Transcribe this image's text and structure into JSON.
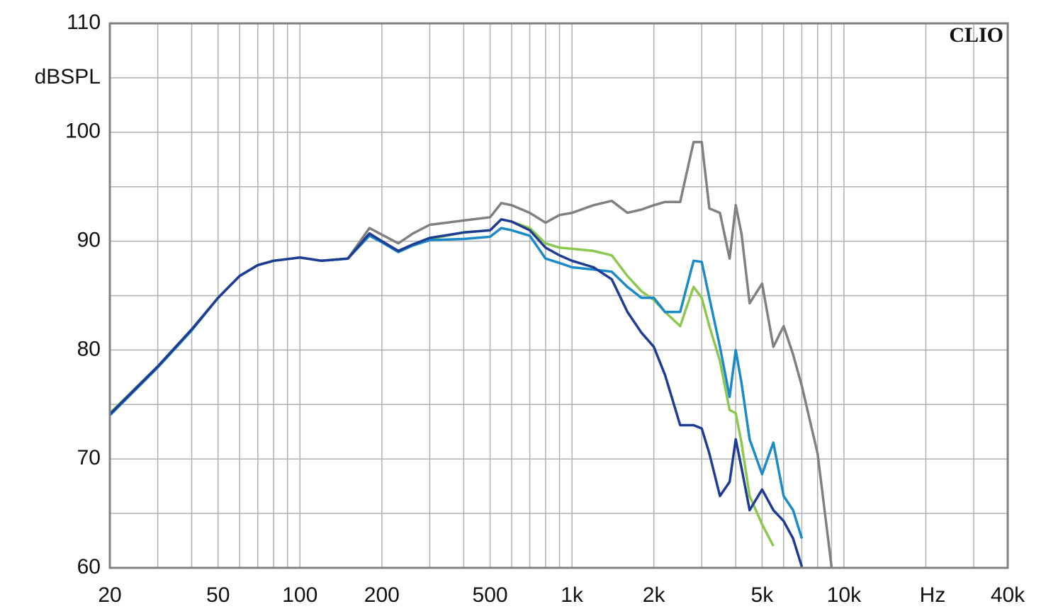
{
  "chart_data": {
    "type": "line",
    "y_label": "dBSPL",
    "x_label": "Hz",
    "annotation": "CLIO",
    "log_x": true,
    "grid": true,
    "xlim": [
      20,
      40000
    ],
    "ylim": [
      60,
      110
    ],
    "xticks": [
      20,
      50,
      100,
      200,
      500,
      {
        "value": 1000,
        "label": "1k"
      },
      {
        "value": 2000,
        "label": "2k"
      },
      {
        "value": 5000,
        "label": "5k"
      },
      {
        "value": 10000,
        "label": "10k"
      },
      {
        "value": 40000,
        "label": "40k"
      }
    ],
    "yticks": [
      60,
      70,
      80,
      90,
      100,
      110
    ],
    "xgrid": [
      30,
      40,
      60,
      70,
      80,
      90,
      300,
      400,
      600,
      700,
      800,
      900,
      3000,
      4000,
      6000,
      7000,
      8000,
      9000,
      20000,
      30000
    ],
    "ygrid": [
      65,
      75,
      85,
      95,
      105
    ],
    "x": [
      20,
      30,
      40,
      50,
      60,
      70,
      80,
      100,
      120,
      150,
      180,
      200,
      230,
      260,
      300,
      400,
      500,
      550,
      600,
      700,
      800,
      900,
      1000,
      1200,
      1400,
      1600,
      1800,
      2000,
      2200,
      2500,
      2800,
      3000,
      3200,
      3500,
      3800,
      4000,
      4200,
      4500,
      5000,
      5500,
      6000,
      6500,
      7000,
      8000,
      9000
    ],
    "series": [
      {
        "color": "#808080",
        "values": [
          74.2,
          78.5,
          81.9,
          84.8,
          86.8,
          87.8,
          88.2,
          88.5,
          88.2,
          88.4,
          91.2,
          90.6,
          89.8,
          90.7,
          91.5,
          91.9,
          92.2,
          93.5,
          93.3,
          92.6,
          91.7,
          92.4,
          92.6,
          93.3,
          93.7,
          92.6,
          92.9,
          93.3,
          93.6,
          93.6,
          99.1,
          99.1,
          93,
          92.6,
          88.4,
          93.3,
          90.7,
          84.3,
          86.1,
          80.3,
          82.2,
          79.6,
          76.7,
          70.5,
          60.1
        ]
      },
      {
        "color": "#8cc850",
        "values": [
          74.2,
          78.5,
          81.9,
          84.8,
          86.8,
          87.8,
          88.2,
          88.5,
          88.2,
          88.4,
          90.7,
          90,
          89.1,
          89.7,
          90.2,
          90.8,
          91,
          92,
          91.8,
          91.2,
          89.8,
          89.4,
          89.3,
          89.1,
          88.7,
          86.8,
          85.4,
          84.6,
          83.5,
          82.2,
          85.8,
          84.8,
          82.2,
          79,
          74.5,
          74.2,
          71.5,
          66.6,
          64,
          62,
          null,
          null,
          null,
          null,
          null
        ]
      },
      {
        "color": "#1a8ac8",
        "values": [
          74,
          78.4,
          81.8,
          84.8,
          86.8,
          87.8,
          88.2,
          88.5,
          88.2,
          88.4,
          90.5,
          89.9,
          89,
          89.6,
          90.1,
          90.2,
          90.4,
          91.2,
          91,
          90.5,
          88.4,
          88,
          87.6,
          87.4,
          87.2,
          85.8,
          84.8,
          84.8,
          83.5,
          83.5,
          88.2,
          88.1,
          84.8,
          80.3,
          75.7,
          80,
          77,
          71.8,
          68.6,
          71.5,
          66.6,
          65.3,
          62.7,
          null,
          null
        ]
      },
      {
        "color": "#1f3c94",
        "values": [
          74.1,
          78.5,
          81.9,
          84.8,
          86.8,
          87.8,
          88.2,
          88.5,
          88.2,
          88.4,
          90.7,
          90,
          89.1,
          89.7,
          90.3,
          90.8,
          91,
          92,
          91.8,
          91,
          89.4,
          88.7,
          88.2,
          87.6,
          86.5,
          83.5,
          81.6,
          80.3,
          77.7,
          73.1,
          73.1,
          72.8,
          70.5,
          66.6,
          67.9,
          71.8,
          69.2,
          65.3,
          67.2,
          65.3,
          64.3,
          62.7,
          60.1,
          null,
          null
        ]
      }
    ]
  }
}
